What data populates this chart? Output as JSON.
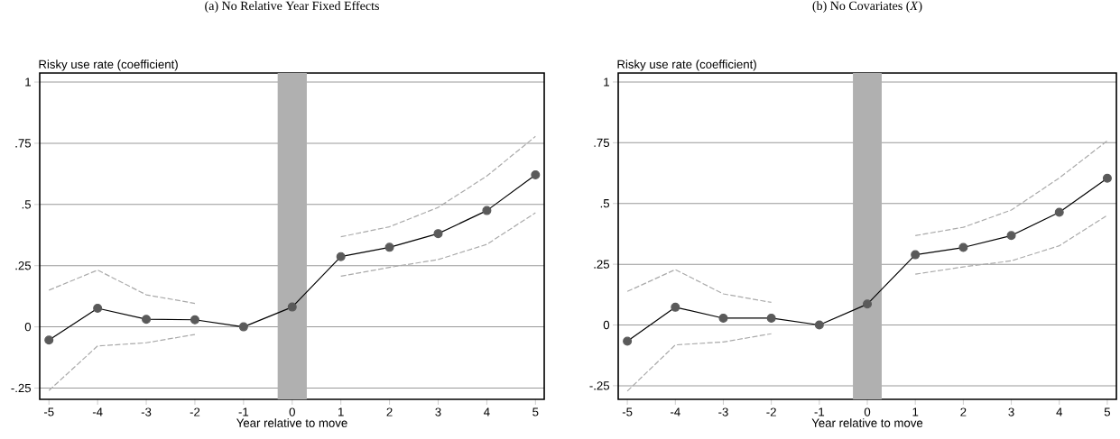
{
  "chart_data": [
    {
      "type": "line",
      "title": "(a) No Relative Year Fixed Effects",
      "xlabel": "Year relative to move",
      "ylabel": "Risky use rate (coefficient)",
      "x": [
        -5,
        -4,
        -3,
        -2,
        -1,
        0,
        1,
        2,
        3,
        4,
        5
      ],
      "xlim": [
        -5.19,
        5.18
      ],
      "xticks": [
        -5,
        -4,
        -3,
        -2,
        -1,
        0,
        1,
        2,
        3,
        4,
        5
      ],
      "ylim": [
        -0.296,
        1.037
      ],
      "yticks": [
        {
          "value": -0.25,
          "label": "-.25"
        },
        0,
        {
          "value": 0.25,
          "label": ".25"
        },
        {
          "value": 0.5,
          "label": ".5"
        },
        {
          "value": 0.75,
          "label": ".75"
        },
        1
      ],
      "grid": "y",
      "bands": [
        {
          "axis": "x",
          "from": -0.3,
          "to": 0.3,
          "color": "#b0b0b0"
        }
      ],
      "series": [
        {
          "color": "#000000",
          "marker": "circle",
          "line_style": "solid",
          "values": [
            -0.054,
            0.076,
            0.031,
            0.029,
            0,
            0.081,
            0.287,
            0.325,
            0.381,
            0.475,
            0.621
          ]
        },
        {
          "color": "#aaaaaa",
          "marker": "none",
          "line_style": "dashed",
          "values": [
            0.15,
            0.232,
            0.131,
            0.096,
            null,
            null,
            0.368,
            0.409,
            0.488,
            0.616,
            0.778
          ]
        },
        {
          "color": "#aaaaaa",
          "marker": "none",
          "line_style": "dashed",
          "values": [
            -0.26,
            -0.078,
            -0.065,
            -0.031,
            null,
            null,
            0.207,
            0.243,
            0.275,
            0.337,
            0.466
          ]
        }
      ]
    },
    {
      "type": "line",
      "title": "(b) No Covariates (*X*)",
      "xlabel": "Year relative to move",
      "ylabel": "Risky use rate (coefficient)",
      "x": [
        -5,
        -4,
        -3,
        -2,
        -1,
        0,
        1,
        2,
        3,
        4,
        5
      ],
      "xlim": [
        -5.19,
        5.19
      ],
      "xticks": [
        -5,
        -4,
        -3,
        -2,
        -1,
        0,
        1,
        2,
        3,
        4,
        5
      ],
      "ylim": [
        -0.306,
        1.037
      ],
      "yticks": [
        {
          "value": -0.25,
          "label": "-.25"
        },
        0,
        {
          "value": 0.25,
          "label": ".25"
        },
        {
          "value": 0.5,
          "label": ".5"
        },
        {
          "value": 0.75,
          "label": ".75"
        },
        1
      ],
      "grid": "y",
      "bands": [
        {
          "axis": "x",
          "from": -0.3,
          "to": 0.3,
          "color": "#b0b0b0"
        }
      ],
      "series": [
        {
          "color": "#000000",
          "marker": "circle",
          "line_style": "solid",
          "values": [
            -0.067,
            0.073,
            0.028,
            0.028,
            0,
            0.086,
            0.289,
            0.319,
            0.368,
            0.464,
            0.604
          ]
        },
        {
          "color": "#aaaaaa",
          "marker": "none",
          "line_style": "dashed",
          "values": [
            0.138,
            0.228,
            0.128,
            0.093,
            null,
            null,
            0.368,
            0.402,
            0.473,
            0.605,
            0.758
          ]
        },
        {
          "color": "#aaaaaa",
          "marker": "none",
          "line_style": "dashed",
          "values": [
            -0.272,
            -0.082,
            -0.07,
            -0.036,
            null,
            null,
            0.209,
            0.239,
            0.264,
            0.326,
            0.451
          ]
        }
      ]
    }
  ]
}
